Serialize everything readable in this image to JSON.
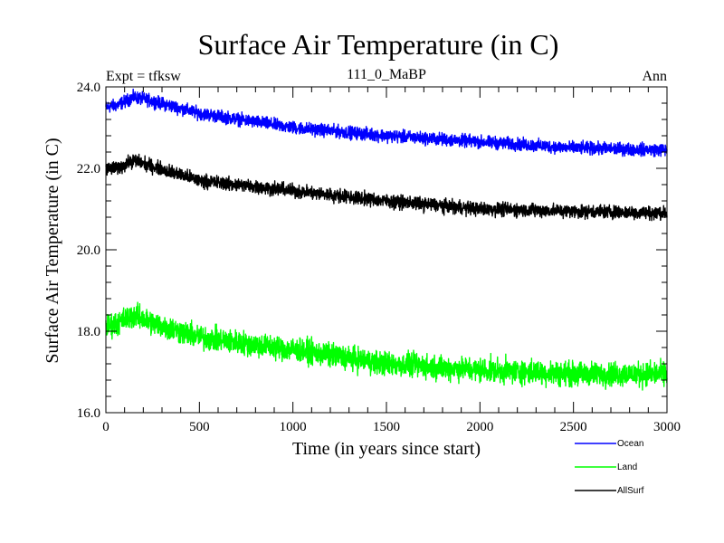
{
  "chart_data": {
    "type": "line",
    "title": "Surface Air Temperature (in C)",
    "subtitle_left": "Expt = tfksw",
    "subtitle_center": "111_0_MaBP",
    "subtitle_right": "Ann",
    "xlabel": "Time (in years since start)",
    "ylabel": "Surface Air Temperature (in C)",
    "xlim": [
      0,
      3000
    ],
    "ylim": [
      16.0,
      24.0
    ],
    "xticks": [
      0,
      500,
      1000,
      1500,
      2000,
      2500,
      3000
    ],
    "yticks": [
      16.0,
      18.0,
      20.0,
      22.0,
      24.0
    ],
    "xtick_labels": [
      "0",
      "500",
      "1000",
      "1500",
      "2000",
      "2500",
      "3000"
    ],
    "ytick_labels": [
      "16.0",
      "18.0",
      "20.0",
      "22.0",
      "24.0"
    ],
    "x_minor_step": 100,
    "y_minor_step": 0.4,
    "legend_position": "bottom-right outside",
    "series": [
      {
        "name": "Ocean",
        "color": "#0000ff",
        "noise": 0.13,
        "trend": [
          [
            0,
            23.5
          ],
          [
            60,
            23.55
          ],
          [
            150,
            23.75
          ],
          [
            250,
            23.65
          ],
          [
            500,
            23.35
          ],
          [
            1000,
            23.0
          ],
          [
            1500,
            22.8
          ],
          [
            2000,
            22.65
          ],
          [
            2500,
            22.5
          ],
          [
            3000,
            22.45
          ]
        ]
      },
      {
        "name": "Land",
        "color": "#00ff00",
        "noise": 0.25,
        "trend": [
          [
            0,
            18.1
          ],
          [
            60,
            18.2
          ],
          [
            150,
            18.4
          ],
          [
            250,
            18.2
          ],
          [
            500,
            17.85
          ],
          [
            1000,
            17.55
          ],
          [
            1500,
            17.2
          ],
          [
            2000,
            17.05
          ],
          [
            2500,
            16.95
          ],
          [
            3000,
            16.95
          ]
        ]
      },
      {
        "name": "AllSurf",
        "color": "#000000",
        "noise": 0.14,
        "trend": [
          [
            0,
            22.0
          ],
          [
            60,
            22.0
          ],
          [
            150,
            22.2
          ],
          [
            250,
            22.05
          ],
          [
            500,
            21.7
          ],
          [
            1000,
            21.45
          ],
          [
            1500,
            21.2
          ],
          [
            2000,
            21.0
          ],
          [
            2500,
            20.95
          ],
          [
            3000,
            20.9
          ]
        ]
      }
    ]
  }
}
